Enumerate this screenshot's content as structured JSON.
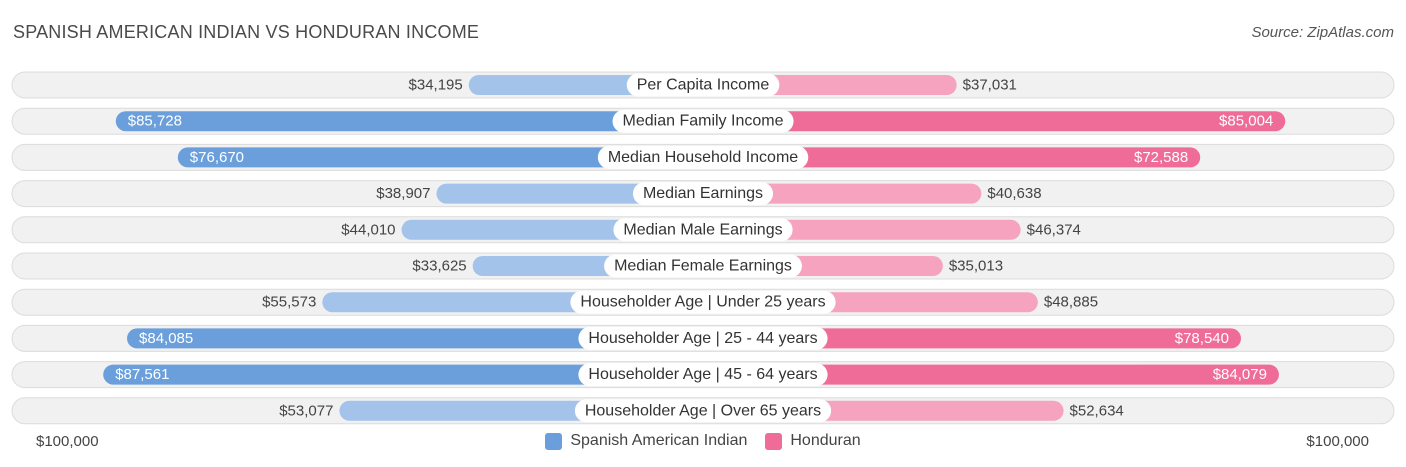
{
  "title": "SPANISH AMERICAN INDIAN VS HONDURAN INCOME",
  "source": "Source: ZipAtlas.com",
  "colors": {
    "left_strong": "#6a9fdc",
    "left_light": "#a3c3ea",
    "right_strong": "#ee6c97",
    "right_light": "#f5a3bf",
    "row_bg": "#eeeeee"
  },
  "axis": {
    "left_label": "$100,000",
    "right_label": "$100,000"
  },
  "legend": [
    {
      "label": "Spanish American Indian",
      "color": "#6a9fdc"
    },
    {
      "label": "Honduran",
      "color": "#ee6c97"
    }
  ],
  "chart_data": {
    "type": "bar",
    "orientation": "diverging-horizontal",
    "xlim": [
      0,
      100000
    ],
    "categories": [
      "Per Capita Income",
      "Median Family Income",
      "Median Household Income",
      "Median Earnings",
      "Median Male Earnings",
      "Median Female Earnings",
      "Householder Age | Under 25 years",
      "Householder Age | 25 - 44 years",
      "Householder Age | 45 - 64 years",
      "Householder Age | Over 65 years"
    ],
    "series": [
      {
        "name": "Spanish American Indian",
        "values": [
          34195,
          85728,
          76670,
          38907,
          44010,
          33625,
          55573,
          84085,
          87561,
          53077
        ],
        "labels": [
          "$34,195",
          "$85,728",
          "$76,670",
          "$38,907",
          "$44,010",
          "$33,625",
          "$55,573",
          "$84,085",
          "$87,561",
          "$53,077"
        ]
      },
      {
        "name": "Honduran",
        "values": [
          37031,
          85004,
          72588,
          40638,
          46374,
          35013,
          48885,
          78540,
          84079,
          52634
        ],
        "labels": [
          "$37,031",
          "$85,004",
          "$72,588",
          "$40,638",
          "$46,374",
          "$35,013",
          "$48,885",
          "$78,540",
          "$84,079",
          "$52,634"
        ]
      }
    ]
  }
}
